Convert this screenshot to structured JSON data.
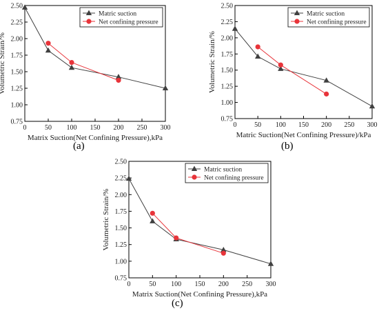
{
  "chart_data": [
    {
      "panel_label": "(a)",
      "type": "line",
      "xlabel": "Matrix Suction(Net Confining Pressure),kPa",
      "ylabel": "Volumetric Strain/%",
      "xlim": [
        0,
        300
      ],
      "ylim": [
        0.75,
        2.5
      ],
      "x_ticks": [
        "0",
        "50",
        "100",
        "150",
        "200",
        "250",
        "300"
      ],
      "y_ticks": [
        "0.75",
        "1.00",
        "1.25",
        "1.50",
        "1.75",
        "2.00",
        "2.25",
        "2.50"
      ],
      "legend_position": "top-right",
      "series": [
        {
          "name": "Matric suction",
          "marker": "triangle",
          "color": "#404040",
          "x": [
            0,
            50,
            100,
            200,
            300
          ],
          "y": [
            2.47,
            1.82,
            1.56,
            1.42,
            1.25
          ]
        },
        {
          "name": "Net confining pressure",
          "marker": "circle",
          "color": "#e8343a",
          "x": [
            50,
            100,
            200
          ],
          "y": [
            1.93,
            1.64,
            1.37
          ]
        }
      ]
    },
    {
      "panel_label": "(b)",
      "type": "line",
      "xlabel": "Matric Suction(Net Confining Pressure)/kPa",
      "ylabel": "Volumetric Strain/%",
      "xlim": [
        0,
        300
      ],
      "ylim": [
        0.75,
        2.5
      ],
      "x_ticks": [
        "0",
        "50",
        "100",
        "150",
        "200",
        "250",
        "300"
      ],
      "y_ticks": [
        "0.75",
        "1.00",
        "1.25",
        "1.50",
        "1.75",
        "2.00",
        "2.25",
        "2.50"
      ],
      "legend_position": "top-right",
      "series": [
        {
          "name": "Matric suction",
          "marker": "triangle",
          "color": "#404040",
          "x": [
            0,
            50,
            100,
            200,
            300
          ],
          "y": [
            2.14,
            1.71,
            1.52,
            1.34,
            0.94
          ]
        },
        {
          "name": "Net confining pressure",
          "marker": "circle",
          "color": "#e8343a",
          "x": [
            50,
            100,
            200
          ],
          "y": [
            1.86,
            1.58,
            1.13
          ]
        }
      ]
    },
    {
      "panel_label": "(c)",
      "type": "line",
      "xlabel": "Matrix Suction(Net Confining Pressure),kPa",
      "ylabel": "Volumetric Strain/%",
      "xlim": [
        0,
        300
      ],
      "ylim": [
        0.75,
        2.5
      ],
      "x_ticks": [
        "0",
        "50",
        "100",
        "150",
        "200",
        "250",
        "300"
      ],
      "y_ticks": [
        "0.75",
        "1.00",
        "1.25",
        "1.50",
        "1.75",
        "2.00",
        "2.25",
        "2.50"
      ],
      "legend_position": "top-right",
      "series": [
        {
          "name": "Matric suction",
          "marker": "triangle",
          "color": "#404040",
          "x": [
            0,
            50,
            100,
            200,
            300
          ],
          "y": [
            2.24,
            1.6,
            1.33,
            1.17,
            0.96
          ]
        },
        {
          "name": "Net confining pressure",
          "marker": "circle",
          "color": "#e8343a",
          "x": [
            50,
            100,
            200
          ],
          "y": [
            1.72,
            1.35,
            1.12
          ]
        }
      ]
    }
  ]
}
